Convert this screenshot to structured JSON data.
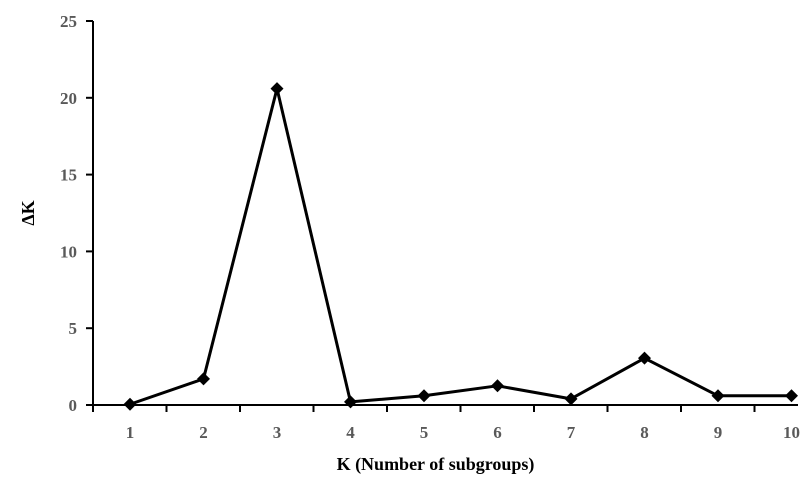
{
  "chart_data": {
    "type": "line",
    "title": "",
    "xlabel": "K (Number of subgroups)",
    "ylabel": "ΔK",
    "x": [
      1,
      2,
      3,
      4,
      5,
      6,
      7,
      8,
      9,
      10
    ],
    "x_tick_labels": [
      "1",
      "2",
      "3",
      "4",
      "5",
      "6",
      "7",
      "8",
      "9",
      "10"
    ],
    "y_ticks": [
      0,
      5,
      10,
      15,
      20,
      25
    ],
    "y_tick_labels": [
      "0",
      "5",
      "10",
      "15",
      "20",
      "25"
    ],
    "ylim": [
      0,
      25
    ],
    "grid": false,
    "legend": "none",
    "series": [
      {
        "values": [
          0.05,
          1.7,
          20.6,
          0.2,
          0.6,
          1.25,
          0.4,
          3.05,
          0.6,
          0.6
        ],
        "color": "#000000",
        "marker": "diamond"
      }
    ]
  }
}
